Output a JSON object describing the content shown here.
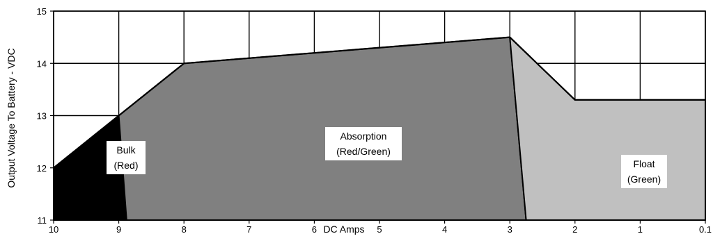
{
  "chart_data": {
    "type": "area",
    "title": "",
    "xlabel": "DC Amps",
    "ylabel": "Output Voltage To Battery - VDC",
    "x_ticks": [
      "10",
      "9",
      "8",
      "7",
      "6",
      "5",
      "4",
      "3",
      "2",
      "1",
      "0.1"
    ],
    "y_ticks": [
      "11",
      "12",
      "13",
      "14",
      "15"
    ],
    "xlim": [
      10,
      0.1
    ],
    "ylim": [
      11,
      15
    ],
    "grid": true,
    "colors": {
      "bulk": "#000000",
      "absorption": "#808080",
      "float": "#c0c0c0",
      "grid": "#000000",
      "background": "#ffffff"
    },
    "charge_curve": {
      "x": [
        "10",
        "9",
        "8",
        "3",
        "2",
        "0.1"
      ],
      "y": [
        12.0,
        13.0,
        14.0,
        14.5,
        13.3,
        13.3
      ]
    },
    "regions": [
      {
        "id": "bulk",
        "name": "Bulk",
        "sub": "(Red)",
        "polygon": [
          [
            "10",
            11
          ],
          [
            "10",
            12.0
          ],
          [
            "9",
            13.0
          ],
          [
            "8.88",
            11
          ]
        ]
      },
      {
        "id": "absorption",
        "name": "Absorption",
        "sub": "(Red/Green)",
        "polygon": [
          [
            "8.88",
            11
          ],
          [
            "9",
            13.0
          ],
          [
            "8",
            14.0
          ],
          [
            "3",
            14.5
          ],
          [
            "2.75",
            11
          ]
        ]
      },
      {
        "id": "float",
        "name": "Float",
        "sub": "(Green)",
        "polygon": [
          [
            "2.75",
            11
          ],
          [
            "3",
            14.5
          ],
          [
            "2",
            13.3
          ],
          [
            "0.1",
            13.3
          ],
          [
            "0.1",
            11
          ]
        ]
      }
    ]
  }
}
